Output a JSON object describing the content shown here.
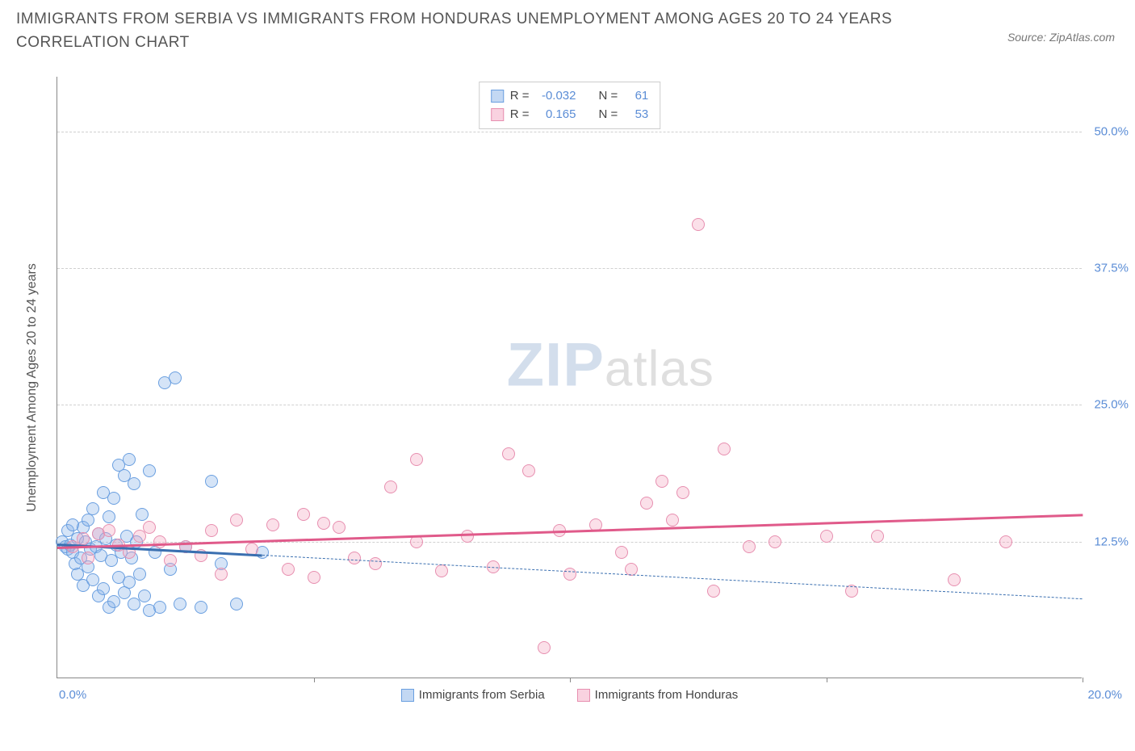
{
  "header": {
    "title": "IMMIGRANTS FROM SERBIA VS IMMIGRANTS FROM HONDURAS UNEMPLOYMENT AMONG AGES 20 TO 24 YEARS CORRELATION CHART",
    "source": "Source: ZipAtlas.com"
  },
  "watermark": {
    "part1": "ZIP",
    "part2": "atlas"
  },
  "chart": {
    "type": "scatter",
    "background_color": "#ffffff",
    "grid_color": "#d0d0d0",
    "axis_color": "#888888",
    "ylabel": "Unemployment Among Ages 20 to 24 years",
    "label_fontsize": 16,
    "xlim": [
      0,
      20
    ],
    "ylim": [
      0,
      55
    ],
    "ytick_step": 12.5,
    "yticks": [
      12.5,
      25.0,
      37.5,
      50.0
    ],
    "ytick_labels": [
      "12.5%",
      "25.0%",
      "37.5%",
      "50.0%"
    ],
    "xtick_positions": [
      5,
      10,
      15,
      20
    ],
    "x_min_label": "0.0%",
    "x_max_label": "20.0%",
    "marker_radius": 8,
    "marker_border_width": 1.2,
    "series": [
      {
        "name": "Immigrants from Serbia",
        "key": "serbia",
        "color_fill": "rgba(136,177,232,0.35)",
        "color_border": "#6a9fe0",
        "trend_color": "#3a6fb0",
        "trend_solid_color": "#3a6fb0",
        "R": "-0.032",
        "N": "61",
        "trend": {
          "x1": 0,
          "y1": 12.3,
          "x2_solid": 4.0,
          "y2_solid": 11.3,
          "x2_dash": 20,
          "y2_dash": 7.3
        },
        "points": [
          [
            0.1,
            12.5
          ],
          [
            0.15,
            12.0
          ],
          [
            0.2,
            11.8
          ],
          [
            0.2,
            13.5
          ],
          [
            0.25,
            12.2
          ],
          [
            0.3,
            11.5
          ],
          [
            0.3,
            14.0
          ],
          [
            0.35,
            10.5
          ],
          [
            0.4,
            12.8
          ],
          [
            0.4,
            9.5
          ],
          [
            0.45,
            11.0
          ],
          [
            0.5,
            13.8
          ],
          [
            0.5,
            8.5
          ],
          [
            0.55,
            12.5
          ],
          [
            0.6,
            10.2
          ],
          [
            0.6,
            14.5
          ],
          [
            0.65,
            11.8
          ],
          [
            0.7,
            9.0
          ],
          [
            0.7,
            15.5
          ],
          [
            0.75,
            12.0
          ],
          [
            0.8,
            7.5
          ],
          [
            0.8,
            13.2
          ],
          [
            0.85,
            11.2
          ],
          [
            0.9,
            17.0
          ],
          [
            0.9,
            8.2
          ],
          [
            0.95,
            12.8
          ],
          [
            1.0,
            6.5
          ],
          [
            1.0,
            14.8
          ],
          [
            1.05,
            10.8
          ],
          [
            1.1,
            16.5
          ],
          [
            1.1,
            7.0
          ],
          [
            1.15,
            12.2
          ],
          [
            1.2,
            9.2
          ],
          [
            1.2,
            19.5
          ],
          [
            1.25,
            11.5
          ],
          [
            1.3,
            7.8
          ],
          [
            1.3,
            18.5
          ],
          [
            1.35,
            13.0
          ],
          [
            1.4,
            8.8
          ],
          [
            1.4,
            20.0
          ],
          [
            1.45,
            11.0
          ],
          [
            1.5,
            6.8
          ],
          [
            1.5,
            17.8
          ],
          [
            1.55,
            12.5
          ],
          [
            1.6,
            9.5
          ],
          [
            1.65,
            15.0
          ],
          [
            1.7,
            7.5
          ],
          [
            1.8,
            19.0
          ],
          [
            1.8,
            6.2
          ],
          [
            1.9,
            11.5
          ],
          [
            2.0,
            6.5
          ],
          [
            2.1,
            27.0
          ],
          [
            2.2,
            10.0
          ],
          [
            2.3,
            27.5
          ],
          [
            2.4,
            6.8
          ],
          [
            2.5,
            12.0
          ],
          [
            2.8,
            6.5
          ],
          [
            3.0,
            18.0
          ],
          [
            3.2,
            10.5
          ],
          [
            3.5,
            6.8
          ],
          [
            4.0,
            11.5
          ]
        ]
      },
      {
        "name": "Immigrants from Honduras",
        "key": "honduras",
        "color_fill": "rgba(244,166,193,0.35)",
        "color_border": "#e78fb0",
        "trend_color": "#e05a8a",
        "R": "0.165",
        "N": "53",
        "trend": {
          "x1": 0,
          "y1": 12.0,
          "x2_solid": 20,
          "y2_solid": 15.0
        },
        "points": [
          [
            0.3,
            12.0
          ],
          [
            0.5,
            12.8
          ],
          [
            0.6,
            11.0
          ],
          [
            0.8,
            13.2
          ],
          [
            1.0,
            13.5
          ],
          [
            1.2,
            12.2
          ],
          [
            1.4,
            11.5
          ],
          [
            1.6,
            13.0
          ],
          [
            1.8,
            13.8
          ],
          [
            2.0,
            12.5
          ],
          [
            2.2,
            10.8
          ],
          [
            2.5,
            12.0
          ],
          [
            2.8,
            11.2
          ],
          [
            3.0,
            13.5
          ],
          [
            3.2,
            9.5
          ],
          [
            3.5,
            14.5
          ],
          [
            3.8,
            11.8
          ],
          [
            4.2,
            14.0
          ],
          [
            4.5,
            10.0
          ],
          [
            4.8,
            15.0
          ],
          [
            5.0,
            9.2
          ],
          [
            5.2,
            14.2
          ],
          [
            5.5,
            13.8
          ],
          [
            5.8,
            11.0
          ],
          [
            6.2,
            10.5
          ],
          [
            6.5,
            17.5
          ],
          [
            7.0,
            12.5
          ],
          [
            7.0,
            20.0
          ],
          [
            7.5,
            9.8
          ],
          [
            8.0,
            13.0
          ],
          [
            8.5,
            10.2
          ],
          [
            8.8,
            20.5
          ],
          [
            9.2,
            19.0
          ],
          [
            9.5,
            2.8
          ],
          [
            9.8,
            13.5
          ],
          [
            10.0,
            9.5
          ],
          [
            10.5,
            14.0
          ],
          [
            11.0,
            11.5
          ],
          [
            11.2,
            10.0
          ],
          [
            11.5,
            16.0
          ],
          [
            11.8,
            18.0
          ],
          [
            12.0,
            14.5
          ],
          [
            12.2,
            17.0
          ],
          [
            12.5,
            41.5
          ],
          [
            12.8,
            8.0
          ],
          [
            13.0,
            21.0
          ],
          [
            13.5,
            12.0
          ],
          [
            14.0,
            12.5
          ],
          [
            15.0,
            13.0
          ],
          [
            15.5,
            8.0
          ],
          [
            16.0,
            13.0
          ],
          [
            17.5,
            9.0
          ],
          [
            18.5,
            12.5
          ]
        ]
      }
    ],
    "legend_top": {
      "rows": [
        {
          "sw_fill": "rgba(136,177,232,0.5)",
          "sw_border": "#6a9fe0",
          "r_label": "R =",
          "r_val": "-0.032",
          "n_label": "N =",
          "n_val": "61"
        },
        {
          "sw_fill": "rgba(244,166,193,0.5)",
          "sw_border": "#e78fb0",
          "r_label": "R =",
          "r_val": "0.165",
          "n_label": "N =",
          "n_val": "53"
        }
      ]
    },
    "legend_bottom": [
      {
        "sw_fill": "rgba(136,177,232,0.5)",
        "sw_border": "#6a9fe0",
        "label": "Immigrants from Serbia"
      },
      {
        "sw_fill": "rgba(244,166,193,0.5)",
        "sw_border": "#e78fb0",
        "label": "Immigrants from Honduras"
      }
    ]
  }
}
